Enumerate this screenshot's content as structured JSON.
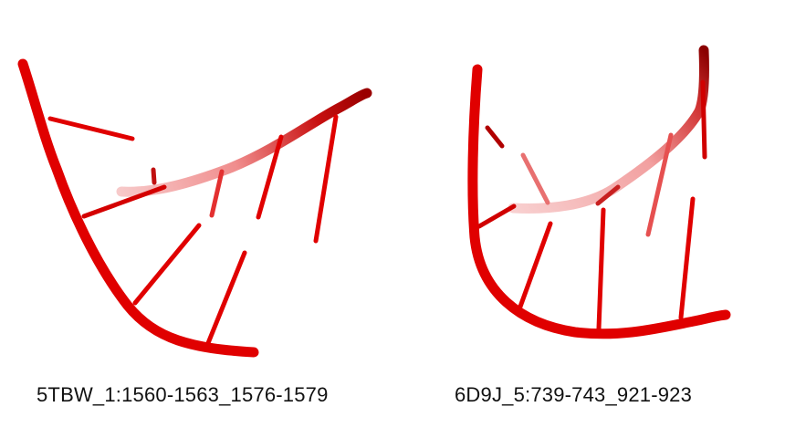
{
  "colors": {
    "backbone": "#e00000",
    "backbone_dark": "#8a0000",
    "backbone_faded": "#f4b8b8",
    "background": "#ffffff",
    "caption_text": "#111111"
  },
  "structures": [
    {
      "caption": "5TBW_1:1560-1563_1576-1579"
    },
    {
      "caption": "6D9J_5:739-743_921-923"
    }
  ]
}
